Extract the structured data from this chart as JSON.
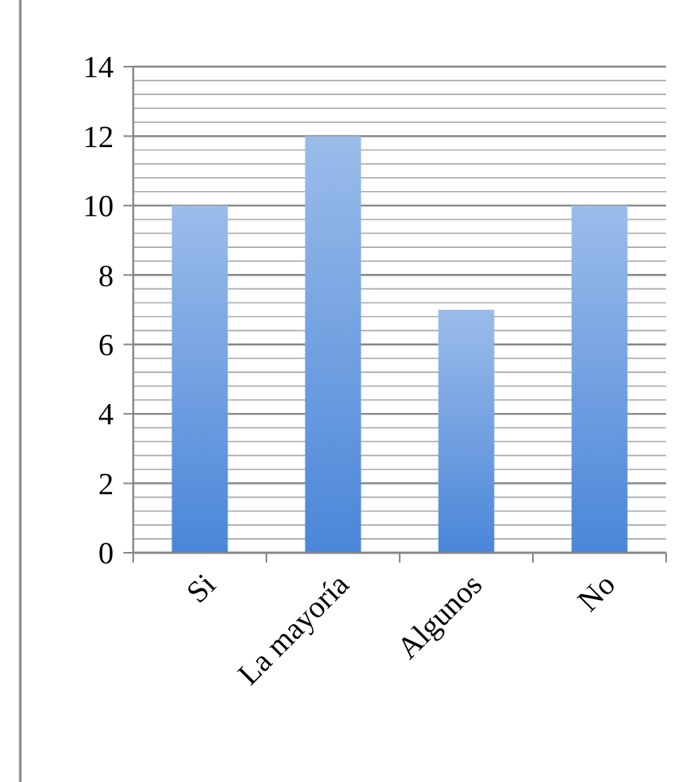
{
  "chart_data": {
    "type": "bar",
    "categories": [
      "Si",
      "La mayoría",
      "Algunos",
      "No"
    ],
    "values": [
      10,
      12,
      7,
      10
    ],
    "color": "#4a86d8",
    "ylim": [
      0,
      14
    ],
    "yticks": [
      0,
      {
        "value": 0.4,
        "label": null
      },
      {
        "value": 0.8,
        "label": null
      },
      {
        "value": 1.2,
        "label": null
      },
      {
        "value": 1.6,
        "label": null
      },
      2,
      {
        "value": 2.4,
        "label": null
      },
      {
        "value": 2.8,
        "label": null
      },
      {
        "value": 3.2,
        "label": null
      },
      {
        "value": 3.6,
        "label": null
      },
      4,
      {
        "value": 4.4,
        "label": null
      },
      {
        "value": 4.8,
        "label": null
      },
      {
        "value": 5.2,
        "label": null
      },
      {
        "value": 5.6,
        "label": null
      },
      6,
      {
        "value": 6.4,
        "label": null
      },
      {
        "value": 6.8,
        "label": null
      },
      {
        "value": 7.2,
        "label": null
      },
      {
        "value": 7.6,
        "label": null
      },
      8,
      {
        "value": 8.4,
        "label": null
      },
      {
        "value": 8.8,
        "label": null
      },
      {
        "value": 9.2,
        "label": null
      },
      {
        "value": 9.6,
        "label": null
      },
      10,
      {
        "value": 10.4,
        "label": null
      },
      {
        "value": 10.8,
        "label": null
      },
      {
        "value": 11.2,
        "label": null
      },
      {
        "value": 11.6,
        "label": null
      },
      12,
      {
        "value": 12.4,
        "label": null
      },
      {
        "value": 12.8,
        "label": null
      },
      {
        "value": 13.2,
        "label": null
      },
      {
        "value": 13.6,
        "label": null
      },
      14
    ],
    "grid": true
  }
}
